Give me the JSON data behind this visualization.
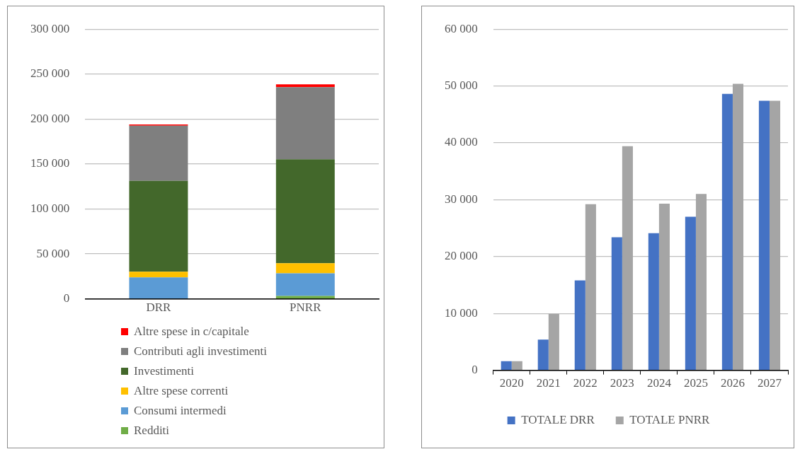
{
  "chart_data": [
    {
      "type": "bar",
      "stacked": true,
      "categories": [
        "DRR",
        "PNRR"
      ],
      "series": [
        {
          "name": "Redditi",
          "color": "#70ad47",
          "values": [
            0,
            3200
          ]
        },
        {
          "name": "Consumi intermedi",
          "color": "#5b9bd5",
          "values": [
            23800,
            25100
          ]
        },
        {
          "name": "Altre spese correnti",
          "color": "#ffc000",
          "values": [
            6400,
            11400
          ]
        },
        {
          "name": "Investimenti",
          "color": "#43682b",
          "values": [
            101000,
            115600
          ]
        },
        {
          "name": "Contributi agli investimenti",
          "color": "#7f7f7f",
          "values": [
            61400,
            80200
          ]
        },
        {
          "name": "Altre spese in c/capitale",
          "color": "#ff0000",
          "values": [
            1300,
            3200
          ]
        }
      ],
      "ylim": [
        0,
        300000
      ],
      "yticks": [
        {
          "value": 0,
          "label": "0"
        },
        {
          "value": 50000,
          "label": "50 000"
        },
        {
          "value": 100000,
          "label": "100 000"
        },
        {
          "value": 150000,
          "label": "150 000"
        },
        {
          "value": 200000,
          "label": "200 000"
        },
        {
          "value": 250000,
          "label": "250 000"
        },
        {
          "value": 300000,
          "label": "300 000"
        }
      ],
      "grid": "y",
      "legend": "bottom"
    },
    {
      "type": "bar",
      "categories": [
        "2020",
        "2021",
        "2022",
        "2023",
        "2024",
        "2025",
        "2026",
        "2027"
      ],
      "series": [
        {
          "name": "TOTALE DRR",
          "color": "#4472c4",
          "values": [
            1600,
            5400,
            15800,
            23400,
            24100,
            27000,
            48600,
            47400
          ]
        },
        {
          "name": "TOTALE PNRR",
          "color": "#a5a5a5",
          "values": [
            1600,
            9900,
            29200,
            39400,
            29300,
            31000,
            50400,
            47400
          ]
        }
      ],
      "ylim": [
        0,
        60000
      ],
      "yticks": [
        {
          "value": 0,
          "label": "0"
        },
        {
          "value": 10000,
          "label": "10 000"
        },
        {
          "value": 20000,
          "label": "20 000"
        },
        {
          "value": 30000,
          "label": "30 000"
        },
        {
          "value": 40000,
          "label": "40 000"
        },
        {
          "value": 50000,
          "label": "50 000"
        },
        {
          "value": 60000,
          "label": "60 000"
        }
      ],
      "grid": "y",
      "legend": "bottom"
    }
  ]
}
